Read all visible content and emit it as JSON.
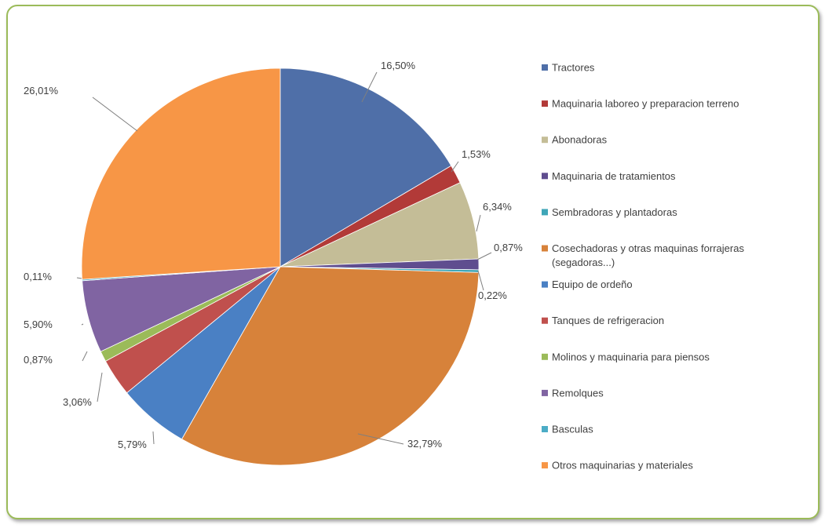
{
  "chart_data": {
    "type": "pie",
    "title": "",
    "categories": [
      "Tractores",
      "Maquinaria laboreo y preparacion terreno",
      "Abonadoras",
      "Maquinaria de tratamientos",
      "Sembradoras y plantadoras",
      "Cosechadoras y otras maquinas forrajeras (segadoras...)",
      "Equipo de ordeño",
      "Tanques de refrigeracion",
      "Molinos y maquinaria para piensos",
      "Remolques",
      "Basculas",
      "Otros maquinarias y materiales"
    ],
    "values": [
      16.5,
      1.53,
      6.34,
      0.87,
      0.22,
      32.79,
      5.79,
      3.06,
      0.87,
      5.9,
      0.11,
      26.01
    ],
    "labels": [
      "16,50%",
      "1,53%",
      "6,34%",
      "0,87%",
      "0,22%",
      "32,79%",
      "5,79%",
      "3,06%",
      "0,87%",
      "5,90%",
      "0,11%",
      "26,01%"
    ],
    "colors": [
      "#4f6fa8",
      "#b23a38",
      "#c4bd97",
      "#5f4d8f",
      "#3fa6b8",
      "#d7823a",
      "#4a80c4",
      "#c0504d",
      "#9bbb59",
      "#8064a2",
      "#4bacc6",
      "#f79646"
    ],
    "legend_position": "right"
  }
}
